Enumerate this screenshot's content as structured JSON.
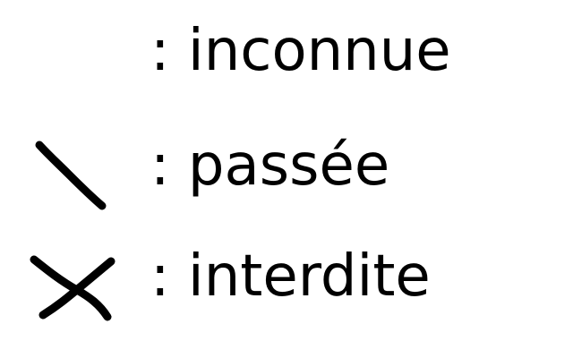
{
  "legend": {
    "items": [
      {
        "symbol": "none",
        "label": ": inconnue"
      },
      {
        "symbol": "single-stroke-icon",
        "label": ": passée"
      },
      {
        "symbol": "cross-icon",
        "label": ": interdite"
      }
    ],
    "stroke_color": "#000000"
  }
}
